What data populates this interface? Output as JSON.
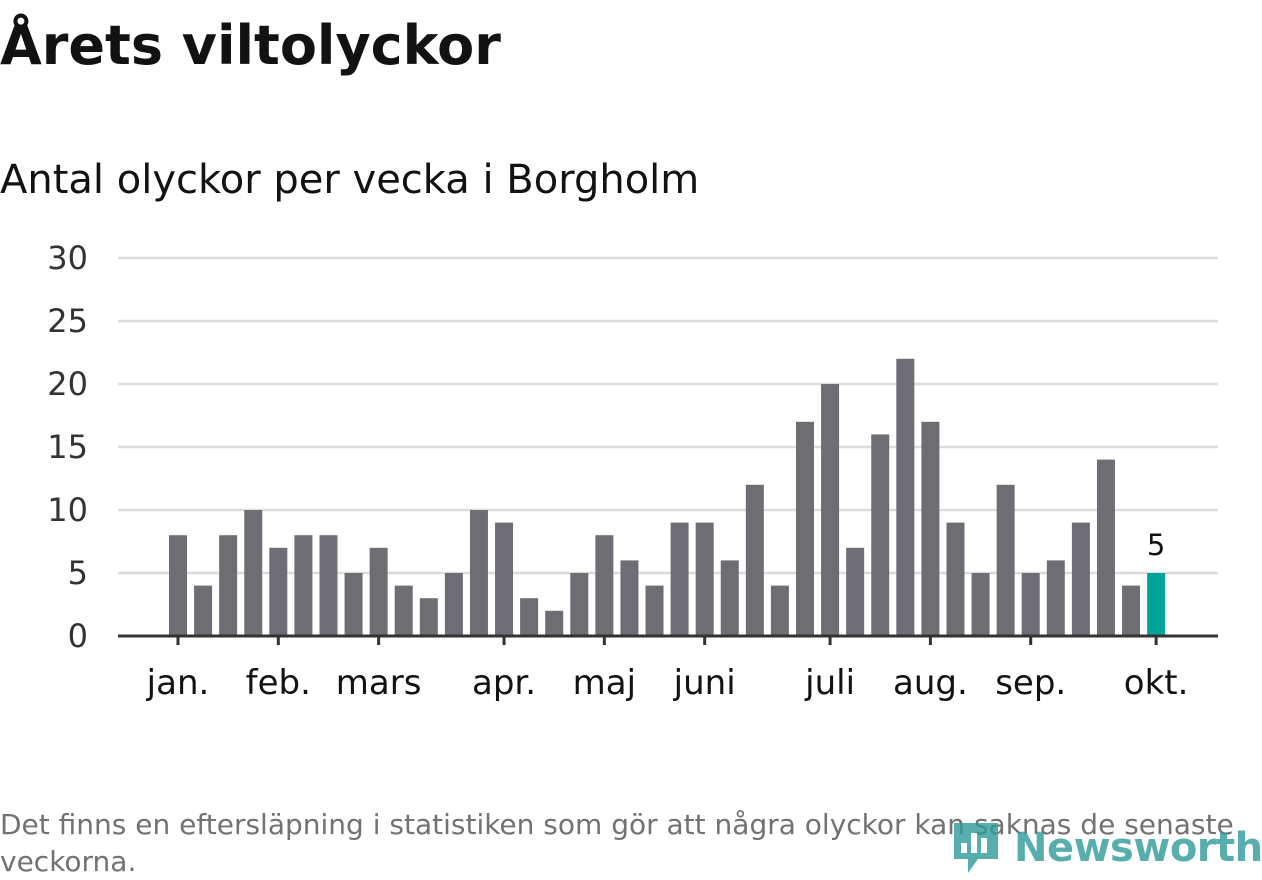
{
  "title": "Årets viltolyckor",
  "subtitle": "Antal olyckor per vecka i Borgholm",
  "footnote": "Det finns en eftersläpning i statistiken som gör att några olyckor kan saknas de senaste veckorna.",
  "logo": {
    "text": "Newsworthy",
    "icon": "newsworthy-logo-icon"
  },
  "colors": {
    "bar": "#6e6d74",
    "highlight": "#00a49a",
    "grid": "#dcdcdc",
    "axis": "#333333",
    "logo": "#2f9a98",
    "text": "#121212",
    "footnote": "#727272"
  },
  "chart_data": {
    "type": "bar",
    "title": "Årets viltolyckor",
    "subtitle": "Antal olyckor per vecka i Borgholm",
    "xlabel": "",
    "ylabel": "",
    "ylim": [
      0,
      30
    ],
    "yticks": [
      0,
      5,
      10,
      15,
      20,
      25,
      30
    ],
    "grid": true,
    "legend": "none",
    "values": [
      8,
      4,
      8,
      10,
      7,
      8,
      8,
      5,
      7,
      4,
      3,
      5,
      10,
      9,
      3,
      2,
      5,
      8,
      6,
      4,
      9,
      9,
      6,
      12,
      4,
      17,
      20,
      7,
      16,
      22,
      17,
      9,
      5,
      12,
      5,
      6,
      9,
      14,
      4,
      5
    ],
    "month_ticks": [
      {
        "label": "jan.",
        "bar_index": 0
      },
      {
        "label": "feb.",
        "bar_index": 4
      },
      {
        "label": "mars",
        "bar_index": 8
      },
      {
        "label": "apr.",
        "bar_index": 13
      },
      {
        "label": "maj",
        "bar_index": 17
      },
      {
        "label": "juni",
        "bar_index": 21
      },
      {
        "label": "juli",
        "bar_index": 26
      },
      {
        "label": "aug.",
        "bar_index": 30
      },
      {
        "label": "sep.",
        "bar_index": 34
      },
      {
        "label": "okt.",
        "bar_index": 39
      }
    ],
    "highlight_index": 39,
    "data_labels": [
      {
        "bar_index": 39,
        "text": "5"
      }
    ]
  }
}
